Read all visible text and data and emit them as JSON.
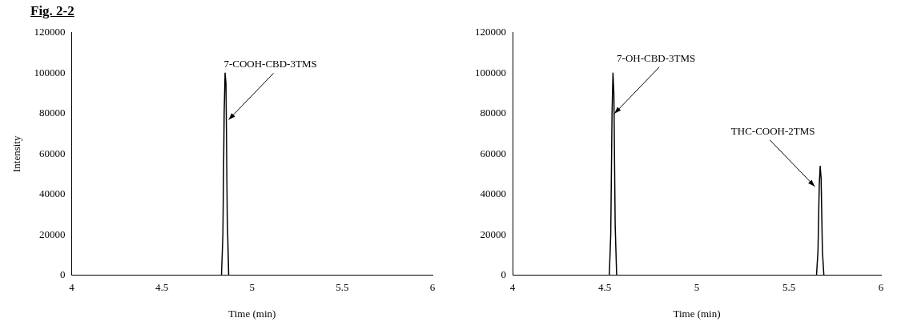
{
  "chart_data": [
    {
      "type": "line",
      "title": "Fig. 2-2",
      "xlabel": "Time (min)",
      "ylabel": "Intensity",
      "series": [
        {
          "color": "#000000",
          "x": [
            4,
            4.83,
            4.838,
            4.845,
            4.85,
            4.855,
            4.862,
            4.87,
            6
          ],
          "values": [
            0,
            0,
            20000,
            80000,
            100000,
            95000,
            30000,
            0,
            0
          ]
        }
      ],
      "xlim": [
        4,
        6
      ],
      "xticks": [
        4,
        4.5,
        5,
        5.5,
        6
      ],
      "ylim": [
        0,
        120000
      ],
      "yticks": [
        0,
        20000,
        40000,
        60000,
        80000,
        100000,
        120000
      ],
      "annotations": [
        {
          "text": "7-COOH-CBD-3TMS",
          "x": 4.87,
          "y": 77000
        }
      ]
    },
    {
      "type": "line",
      "xlabel": "Time (min)",
      "series": [
        {
          "color": "#000000",
          "x": [
            4,
            4.525,
            4.533,
            4.54,
            4.545,
            4.55,
            4.557,
            4.565,
            5.65,
            5.658,
            5.665,
            5.67,
            5.675,
            5.682,
            5.69,
            6
          ],
          "values": [
            0,
            0,
            20000,
            80000,
            100000,
            90000,
            25000,
            0,
            0,
            12000,
            45000,
            54000,
            48000,
            12000,
            0,
            0
          ]
        }
      ],
      "xlim": [
        4,
        6
      ],
      "xticks": [
        4,
        4.5,
        5,
        5.5,
        6
      ],
      "ylim": [
        0,
        120000
      ],
      "yticks": [
        0,
        20000,
        40000,
        60000,
        80000,
        100000,
        120000
      ],
      "annotations": [
        {
          "text": "7-OH-CBD-3TMS",
          "x": 4.553,
          "y": 80000
        },
        {
          "text": "THC-COOH-2TMS",
          "x": 5.64,
          "y": 44000
        }
      ]
    }
  ]
}
